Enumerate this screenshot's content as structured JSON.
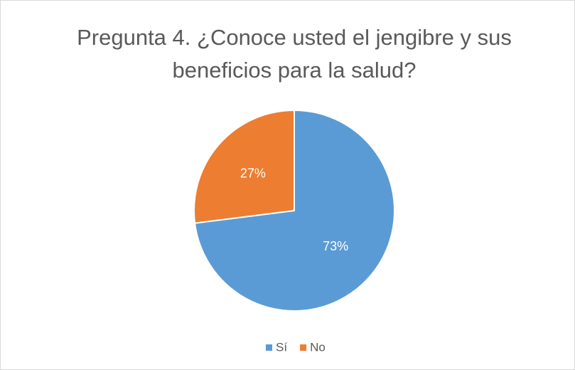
{
  "chart_data": {
    "type": "pie",
    "title": "Pregunta 4. ¿Conoce usted el jengibre y sus beneficios para la salud?",
    "categories": [
      "Sí",
      "No"
    ],
    "values": [
      73,
      27
    ],
    "value_labels": [
      "73%",
      "27%"
    ],
    "colors": [
      "#5b9bd5",
      "#ed7d31"
    ],
    "legend": "bottom"
  }
}
